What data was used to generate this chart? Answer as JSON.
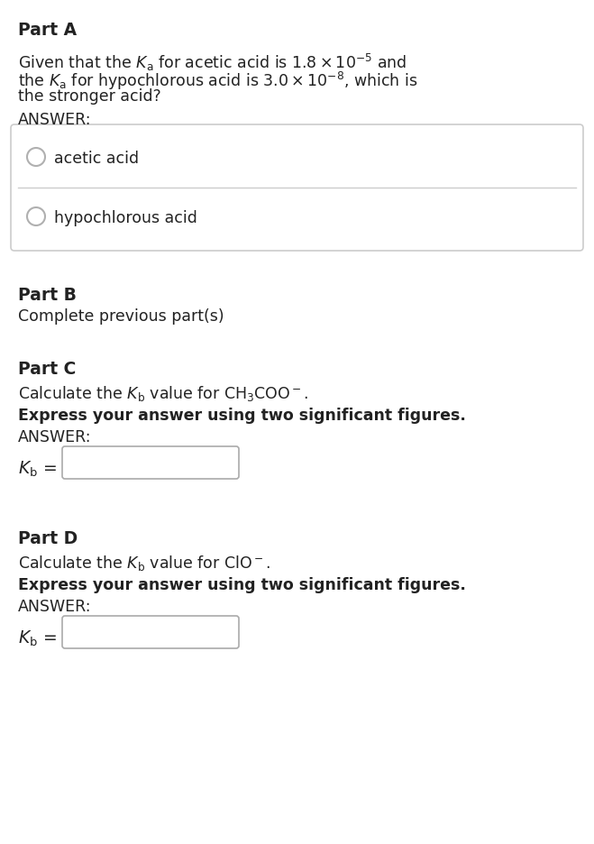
{
  "bg_color": "#ffffff",
  "text_color": "#222222",
  "part_a_label": "Part A",
  "part_a_line1": "Given that the $K_{\\mathrm{a}}$ for acetic acid is $1.8 \\times 10^{-5}$ and",
  "part_a_line2": "the $K_{\\mathrm{a}}$ for hypochlorous acid is $3.0 \\times 10^{-8}$, which is",
  "part_a_line3": "the stronger acid?",
  "answer_label": "ANSWER:",
  "choice1": "acetic acid",
  "choice2": "hypochlorous acid",
  "part_b_label": "Part B",
  "part_b_text": "Complete previous part(s)",
  "part_c_label": "Part C",
  "part_c_line1": "Calculate the $K_{\\mathrm{b}}$ value for $\\mathrm{CH_3COO^-}$.",
  "part_c_bold": "Express your answer using two significant figures.",
  "part_c_answer": "ANSWER:",
  "part_c_kb": "$K_{\\mathrm{b}}$ =",
  "part_d_label": "Part D",
  "part_d_line1": "Calculate the $K_{\\mathrm{b}}$ value for $\\mathrm{ClO^-}$.",
  "part_d_bold": "Express your answer using two significant figures.",
  "part_d_answer": "ANSWER:",
  "part_d_kb": "$K_{\\mathrm{b}}$ ="
}
